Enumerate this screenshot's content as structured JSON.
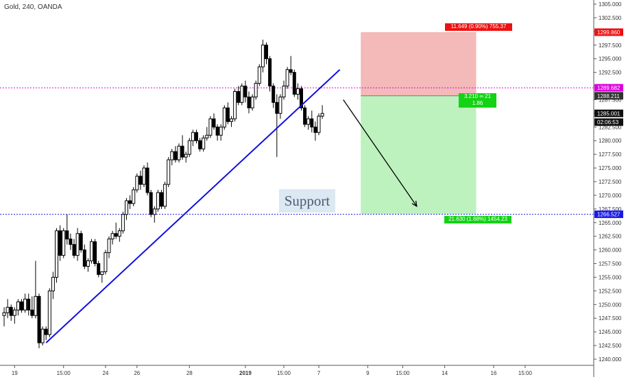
{
  "header": {
    "symbol_title": "Gold, 240, OANDA"
  },
  "annotations": {
    "support_label": "Support",
    "risk_tag": "11.649 (0.90%) 755.37",
    "rr_tag_line1": "3.210 ∞ 21",
    "rr_tag_line2": "1.86",
    "reward_tag": "21.630 (1.68%) 1454.23"
  },
  "price_axis": {
    "ticks": [
      "1305.000",
      "1302.500",
      "1300.000",
      "1297.500",
      "1295.000",
      "1292.500",
      "1290.000",
      "1287.500",
      "1285.000",
      "1282.500",
      "1280.000",
      "1277.500",
      "1275.000",
      "1272.500",
      "1270.000",
      "1267.500",
      "1265.000",
      "1262.500",
      "1260.000",
      "1257.500",
      "1255.000",
      "1252.500",
      "1250.000",
      "1247.500",
      "1245.000",
      "1242.500",
      "1240.000"
    ],
    "labels": [
      {
        "text": "1299.860",
        "value": 1299.86,
        "color": "#ee1111",
        "text_color": "#ffffff"
      },
      {
        "text": "1289.682",
        "value": 1289.682,
        "color": "#dd00dd",
        "text_color": "#ffffff"
      },
      {
        "text": "1288.211",
        "value": 1288.211,
        "color": "#333333",
        "text_color": "#ffffff"
      },
      {
        "text": "1285.001",
        "value": 1285.001,
        "color": "#111111",
        "text_color": "#ffffff"
      },
      {
        "text": "02:06:53",
        "value": 1283.4,
        "color": "#111111",
        "text_color": "#ffffff"
      },
      {
        "text": "1266.527",
        "value": 1266.527,
        "color": "#1a1ae6",
        "text_color": "#ffffff"
      }
    ]
  },
  "time_axis": {
    "labels": [
      {
        "text": "19",
        "index": 3
      },
      {
        "text": "15:00",
        "index": 17
      },
      {
        "text": "24",
        "index": 29
      },
      {
        "text": "26",
        "index": 38
      },
      {
        "text": "28",
        "index": 53
      },
      {
        "text": "2019",
        "index": 69
      },
      {
        "text": "15:00",
        "index": 80
      },
      {
        "text": "7",
        "index": 90
      },
      {
        "text": "9",
        "index": 104
      },
      {
        "text": "15:00",
        "index": 114
      },
      {
        "text": "14",
        "index": 126
      },
      {
        "text": "16",
        "index": 140
      },
      {
        "text": "15:00",
        "index": 149
      }
    ]
  },
  "chart_data": {
    "type": "candlestick",
    "title": "Gold, 240, OANDA",
    "ylim": [
      1239.5,
      1306.5
    ],
    "x_range": [
      -0.5,
      157
    ],
    "candles": [
      [
        1248.0,
        1249.5,
        1246.0,
        1248.5
      ],
      [
        1248.5,
        1251.0,
        1247.5,
        1249.5
      ],
      [
        1249.5,
        1250.0,
        1247.0,
        1248.0
      ],
      [
        1248.0,
        1249.5,
        1246.5,
        1249.0
      ],
      [
        1249.0,
        1251.0,
        1248.0,
        1250.5
      ],
      [
        1250.5,
        1251.0,
        1248.5,
        1249.0
      ],
      [
        1249.0,
        1252.0,
        1248.5,
        1251.0
      ],
      [
        1251.0,
        1252.0,
        1248.0,
        1249.0
      ],
      [
        1249.0,
        1251.5,
        1247.5,
        1248.0
      ],
      [
        1248.0,
        1258.0,
        1247.5,
        1251.5
      ],
      [
        1251.5,
        1252.0,
        1242.0,
        1243.0
      ],
      [
        1243.0,
        1246.0,
        1242.5,
        1245.5
      ],
      [
        1245.5,
        1246.0,
        1243.5,
        1244.5
      ],
      [
        1244.5,
        1253.0,
        1244.0,
        1252.5
      ],
      [
        1252.5,
        1256.0,
        1251.0,
        1255.0
      ],
      [
        1255.0,
        1264.0,
        1254.0,
        1263.5
      ],
      [
        1263.5,
        1264.5,
        1258.0,
        1259.0
      ],
      [
        1259.0,
        1264.0,
        1258.5,
        1263.5
      ],
      [
        1263.5,
        1266.5,
        1261.0,
        1262.0
      ],
      [
        1262.0,
        1263.0,
        1260.0,
        1261.0
      ],
      [
        1261.0,
        1262.0,
        1258.5,
        1259.0
      ],
      [
        1259.0,
        1264.0,
        1258.0,
        1263.0
      ],
      [
        1263.0,
        1263.5,
        1259.5,
        1260.0
      ],
      [
        1260.0,
        1261.0,
        1256.5,
        1257.0
      ],
      [
        1257.0,
        1258.5,
        1256.0,
        1258.0
      ],
      [
        1258.0,
        1262.0,
        1257.5,
        1261.5
      ],
      [
        1261.5,
        1262.0,
        1257.0,
        1257.5
      ],
      [
        1257.5,
        1258.0,
        1255.0,
        1255.5
      ],
      [
        1255.5,
        1256.0,
        1254.0,
        1256.0
      ],
      [
        1256.0,
        1260.0,
        1255.5,
        1259.5
      ],
      [
        1259.5,
        1262.5,
        1258.5,
        1262.0
      ],
      [
        1262.0,
        1263.5,
        1261.0,
        1263.0
      ],
      [
        1263.0,
        1265.0,
        1262.0,
        1262.5
      ],
      [
        1262.5,
        1264.0,
        1261.5,
        1263.5
      ],
      [
        1263.5,
        1267.0,
        1263.0,
        1266.5
      ],
      [
        1266.5,
        1269.5,
        1265.5,
        1269.0
      ],
      [
        1269.0,
        1270.0,
        1267.5,
        1268.5
      ],
      [
        1268.5,
        1271.5,
        1268.0,
        1271.0
      ],
      [
        1271.0,
        1274.0,
        1270.5,
        1273.5
      ],
      [
        1273.5,
        1274.5,
        1271.0,
        1272.0
      ],
      [
        1272.0,
        1275.5,
        1271.5,
        1275.0
      ],
      [
        1275.0,
        1276.0,
        1270.0,
        1270.5
      ],
      [
        1270.5,
        1271.0,
        1266.0,
        1266.5
      ],
      [
        1266.5,
        1268.0,
        1265.0,
        1267.5
      ],
      [
        1267.5,
        1271.0,
        1267.0,
        1270.5
      ],
      [
        1270.5,
        1271.0,
        1267.5,
        1268.0
      ],
      [
        1268.0,
        1272.5,
        1267.5,
        1272.0
      ],
      [
        1272.0,
        1277.0,
        1271.5,
        1276.5
      ],
      [
        1276.5,
        1278.5,
        1275.5,
        1278.0
      ],
      [
        1278.0,
        1279.0,
        1276.0,
        1276.5
      ],
      [
        1276.5,
        1279.5,
        1276.0,
        1279.0
      ],
      [
        1279.0,
        1281.0,
        1276.5,
        1277.0
      ],
      [
        1277.0,
        1278.0,
        1276.0,
        1277.5
      ],
      [
        1277.5,
        1280.5,
        1277.0,
        1280.0
      ],
      [
        1280.0,
        1282.0,
        1279.0,
        1281.5
      ],
      [
        1281.5,
        1282.0,
        1279.5,
        1280.0
      ],
      [
        1280.0,
        1280.5,
        1278.0,
        1278.5
      ],
      [
        1278.5,
        1281.0,
        1278.0,
        1280.5
      ],
      [
        1280.5,
        1282.5,
        1280.0,
        1281.0
      ],
      [
        1281.0,
        1284.5,
        1280.5,
        1284.0
      ],
      [
        1284.0,
        1285.0,
        1282.0,
        1282.5
      ],
      [
        1282.5,
        1283.0,
        1280.0,
        1281.0
      ],
      [
        1281.0,
        1283.0,
        1280.0,
        1282.5
      ],
      [
        1282.5,
        1286.5,
        1282.0,
        1286.0
      ],
      [
        1286.0,
        1287.0,
        1283.0,
        1283.5
      ],
      [
        1283.5,
        1284.5,
        1282.5,
        1284.0
      ],
      [
        1284.0,
        1289.5,
        1283.5,
        1289.0
      ],
      [
        1289.0,
        1290.0,
        1286.5,
        1287.0
      ],
      [
        1287.0,
        1290.5,
        1286.5,
        1290.0
      ],
      [
        1290.0,
        1291.0,
        1287.0,
        1288.0
      ],
      [
        1288.0,
        1289.0,
        1285.0,
        1286.0
      ],
      [
        1286.0,
        1288.5,
        1285.5,
        1288.0
      ],
      [
        1288.0,
        1291.0,
        1287.5,
        1290.5
      ],
      [
        1290.5,
        1294.0,
        1290.0,
        1293.5
      ],
      [
        1293.5,
        1298.5,
        1292.5,
        1297.5
      ],
      [
        1297.5,
        1298.0,
        1294.0,
        1295.0
      ],
      [
        1295.0,
        1295.5,
        1289.0,
        1290.0
      ],
      [
        1290.0,
        1290.5,
        1286.0,
        1287.0
      ],
      [
        1287.0,
        1288.5,
        1277.0,
        1285.0
      ],
      [
        1285.0,
        1288.5,
        1284.0,
        1288.0
      ],
      [
        1288.0,
        1291.0,
        1287.5,
        1290.0
      ],
      [
        1290.0,
        1293.5,
        1289.5,
        1293.0
      ],
      [
        1293.0,
        1295.5,
        1292.0,
        1292.5
      ],
      [
        1292.5,
        1293.0,
        1288.0,
        1288.5
      ],
      [
        1288.5,
        1290.5,
        1287.5,
        1289.5
      ],
      [
        1289.5,
        1290.0,
        1285.5,
        1286.0
      ],
      [
        1286.0,
        1286.5,
        1282.5,
        1283.0
      ],
      [
        1283.0,
        1284.5,
        1282.0,
        1284.0
      ],
      [
        1284.0,
        1285.5,
        1281.5,
        1282.5
      ],
      [
        1282.5,
        1283.5,
        1280.0,
        1281.5
      ],
      [
        1281.5,
        1285.0,
        1281.0,
        1284.5
      ],
      [
        1284.5,
        1286.5,
        1284.0,
        1285.0
      ]
    ],
    "lines": {
      "resistance_level": 1289.682,
      "support_level": 1266.527,
      "entry": 1288.211,
      "stop_loss": 1299.86,
      "take_profit": 1266.58,
      "trendline": {
        "from": [
          12,
          1243.0
        ],
        "to": [
          96,
          1293.0
        ]
      },
      "arrow": {
        "from": [
          97,
          1287.5
        ],
        "to": [
          118,
          1268.0
        ]
      }
    },
    "position_box": {
      "x_from": 102,
      "x_to": 135
    },
    "legend": "none",
    "grid": false
  }
}
